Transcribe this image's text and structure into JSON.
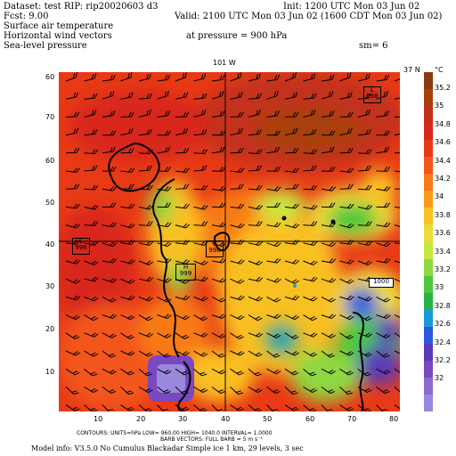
{
  "header": {
    "dataset": "Dataset: test   RIP: rip20020603  d3",
    "init": "Init: 1200 UTC Mon 03 Jun 02",
    "fcst": "Fcst:      9.00",
    "valid": "Valid: 2100 UTC Mon 03 Jun 02 (1600 CDT Mon 03 Jun 02)",
    "line1": "Surface air temperature",
    "line2": "Horizontal wind vectors",
    "pressure": "at pressure =   900 hPa",
    "line3": "Sea-level pressure",
    "sm": "sm= 6"
  },
  "map": {
    "top_label": "101 W",
    "right_label": "37 N",
    "x_ticks": [
      "10",
      "20",
      "30",
      "40",
      "50",
      "60",
      "70",
      "80"
    ],
    "y_ticks": [
      "60",
      "50",
      "40",
      "30",
      "20",
      "10"
    ],
    "y_tick_70": "70",
    "pressure_labels": [
      {
        "letter": "L",
        "value": "998"
      },
      {
        "letter": "L",
        "value": "996"
      },
      {
        "letter": "L",
        "value": "996"
      },
      {
        "letter": "H",
        "value": "999"
      },
      {
        "letter": "",
        "value": "1000"
      }
    ]
  },
  "colorbar": {
    "unit": "°C",
    "labels": [
      "35.2",
      "35",
      "34.8",
      "34.6",
      "34.4",
      "34.2",
      "34",
      "33.8",
      "33.6",
      "33.4",
      "33.2",
      "33",
      "32.8",
      "32.6",
      "32.4",
      "32.2",
      "32"
    ],
    "colors": [
      "#8b3a0f",
      "#a8400a",
      "#c3301a",
      "#d8281e",
      "#e83a16",
      "#f2561a",
      "#f87a18",
      "#fb9a1a",
      "#f9c020",
      "#ecdc3a",
      "#c8e640",
      "#8ed840",
      "#4cc83e",
      "#2ab24a",
      "#1a9ad8",
      "#2a5ae0",
      "#5a3ab8",
      "#7a48c0",
      "#8c6ad0",
      "#9a88dc"
    ]
  },
  "footer": {
    "line1": "CONTOURS:  UNITS=hPa   LOW=   960.00        HIGH=   1040.0        INTERVAL=     1.0000",
    "line2": "BARB VECTORS:  FULL BARB = 5 m s⁻¹",
    "line3": "Model info: V3.5.0 No Cumulus Blackadar  Simple ice     1 km,   29 levels,     3 sec"
  }
}
